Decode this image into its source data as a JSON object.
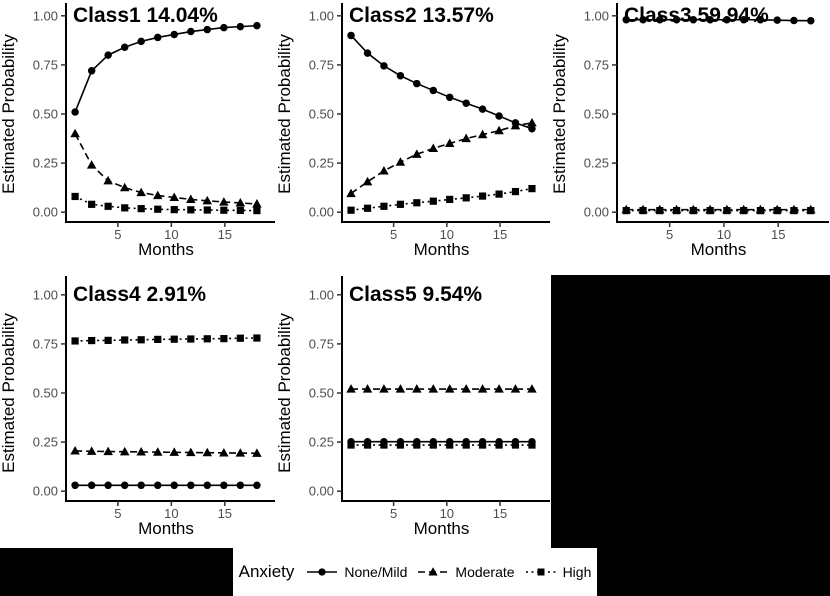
{
  "figure": {
    "background": "#ffffff",
    "filler_color": "#000000",
    "axis_line_color": "#000000",
    "tick_mark_color": "#333333",
    "tick_label_color": "#4d4d4d",
    "series_color": "#000000"
  },
  "legend": {
    "title": "Anxiety",
    "items": [
      {
        "label": "None/Mild",
        "marker": "circle",
        "linetype": "solid"
      },
      {
        "label": "Moderate",
        "marker": "triangle",
        "linetype": "dashed"
      },
      {
        "label": "High",
        "marker": "square",
        "linetype": "dotted"
      }
    ]
  },
  "chart_data": [
    {
      "type": "line",
      "title": "Class1 14.04%",
      "xlabel": "Months",
      "ylabel": "Estimated Probability",
      "xlim": [
        1,
        18
      ],
      "ylim": [
        0,
        1
      ],
      "x_ticks": [
        5,
        10,
        15
      ],
      "y_ticks": [
        0,
        0.25,
        0.5,
        0.75,
        1
      ],
      "y_tick_labels": [
        "0.00",
        "0.25",
        "0.50",
        "0.75",
        "1.00"
      ],
      "grid": false,
      "x": [
        1,
        2.55,
        4.09,
        5.64,
        7.18,
        8.73,
        10.27,
        11.82,
        13.36,
        14.91,
        16.45,
        18
      ],
      "series": [
        {
          "name": "None/Mild",
          "marker": "circle",
          "linetype": "solid",
          "values": [
            0.51,
            0.72,
            0.8,
            0.84,
            0.87,
            0.89,
            0.905,
            0.92,
            0.93,
            0.94,
            0.945,
            0.95
          ]
        },
        {
          "name": "Moderate",
          "marker": "triangle",
          "linetype": "dashed",
          "values": [
            0.4,
            0.24,
            0.16,
            0.125,
            0.1,
            0.085,
            0.075,
            0.065,
            0.058,
            0.052,
            0.047,
            0.042
          ]
        },
        {
          "name": "High",
          "marker": "square",
          "linetype": "dotted",
          "values": [
            0.08,
            0.04,
            0.03,
            0.022,
            0.018,
            0.015,
            0.013,
            0.012,
            0.011,
            0.01,
            0.009,
            0.008
          ]
        }
      ]
    },
    {
      "type": "line",
      "title": "Class2 13.57%",
      "xlabel": "Months",
      "ylabel": "Estimated Probability",
      "xlim": [
        1,
        18
      ],
      "ylim": [
        0,
        1
      ],
      "x_ticks": [
        5,
        10,
        15
      ],
      "y_ticks": [
        0,
        0.25,
        0.5,
        0.75,
        1
      ],
      "y_tick_labels": [
        "0.00",
        "0.25",
        "0.50",
        "0.75",
        "1.00"
      ],
      "grid": false,
      "x": [
        1,
        2.55,
        4.09,
        5.64,
        7.18,
        8.73,
        10.27,
        11.82,
        13.36,
        14.91,
        16.45,
        18
      ],
      "series": [
        {
          "name": "None/Mild",
          "marker": "circle",
          "linetype": "solid",
          "values": [
            0.9,
            0.81,
            0.745,
            0.695,
            0.655,
            0.62,
            0.585,
            0.555,
            0.525,
            0.49,
            0.455,
            0.425
          ]
        },
        {
          "name": "Moderate",
          "marker": "triangle",
          "linetype": "dashed",
          "values": [
            0.095,
            0.155,
            0.21,
            0.255,
            0.295,
            0.325,
            0.35,
            0.375,
            0.395,
            0.415,
            0.44,
            0.455
          ]
        },
        {
          "name": "High",
          "marker": "square",
          "linetype": "dotted",
          "values": [
            0.01,
            0.02,
            0.03,
            0.04,
            0.048,
            0.056,
            0.065,
            0.073,
            0.082,
            0.092,
            0.105,
            0.12
          ]
        }
      ]
    },
    {
      "type": "line",
      "title": "Class3 59.94%",
      "xlabel": "Months",
      "ylabel": "Estimated Probability",
      "xlim": [
        1,
        18
      ],
      "ylim": [
        0,
        1
      ],
      "x_ticks": [
        5,
        10,
        15
      ],
      "y_ticks": [
        0,
        0.25,
        0.5,
        0.75,
        1
      ],
      "y_tick_labels": [
        "0.00",
        "0.25",
        "0.50",
        "0.75",
        "1.00"
      ],
      "grid": false,
      "x": [
        1,
        2.55,
        4.09,
        5.64,
        7.18,
        8.73,
        10.27,
        11.82,
        13.36,
        14.91,
        16.45,
        18
      ],
      "series": [
        {
          "name": "None/Mild",
          "marker": "circle",
          "linetype": "solid",
          "values": [
            0.98,
            0.98,
            0.98,
            0.98,
            0.98,
            0.98,
            0.98,
            0.98,
            0.98,
            0.978,
            0.976,
            0.975
          ]
        },
        {
          "name": "Moderate",
          "marker": "triangle",
          "linetype": "dashed",
          "values": [
            0.013,
            0.013,
            0.013,
            0.013,
            0.013,
            0.013,
            0.013,
            0.013,
            0.013,
            0.013,
            0.013,
            0.013
          ]
        },
        {
          "name": "High",
          "marker": "square",
          "linetype": "dotted",
          "values": [
            0.008,
            0.008,
            0.008,
            0.008,
            0.008,
            0.008,
            0.008,
            0.008,
            0.008,
            0.008,
            0.008,
            0.008
          ]
        }
      ]
    },
    {
      "type": "line",
      "title": "Class4 2.91%",
      "xlabel": "Months",
      "ylabel": "Estimated Probability",
      "xlim": [
        1,
        18
      ],
      "ylim": [
        0,
        1
      ],
      "x_ticks": [
        5,
        10,
        15
      ],
      "y_ticks": [
        0,
        0.25,
        0.5,
        0.75,
        1
      ],
      "y_tick_labels": [
        "0.00",
        "0.25",
        "0.50",
        "0.75",
        "1.00"
      ],
      "grid": false,
      "x": [
        1,
        2.55,
        4.09,
        5.64,
        7.18,
        8.73,
        10.27,
        11.82,
        13.36,
        14.91,
        16.45,
        18
      ],
      "series": [
        {
          "name": "None/Mild",
          "marker": "circle",
          "linetype": "solid",
          "values": [
            0.03,
            0.03,
            0.03,
            0.03,
            0.03,
            0.03,
            0.03,
            0.03,
            0.03,
            0.03,
            0.03,
            0.03
          ]
        },
        {
          "name": "Moderate",
          "marker": "triangle",
          "linetype": "dashed",
          "values": [
            0.205,
            0.203,
            0.202,
            0.201,
            0.2,
            0.199,
            0.198,
            0.197,
            0.196,
            0.195,
            0.194,
            0.193
          ]
        },
        {
          "name": "High",
          "marker": "square",
          "linetype": "dotted",
          "values": [
            0.765,
            0.767,
            0.768,
            0.77,
            0.771,
            0.773,
            0.774,
            0.775,
            0.776,
            0.777,
            0.779,
            0.78
          ]
        }
      ]
    },
    {
      "type": "line",
      "title": "Class5 9.54%",
      "xlabel": "Months",
      "ylabel": "Estimated Probability",
      "xlim": [
        1,
        18
      ],
      "ylim": [
        0,
        1
      ],
      "x_ticks": [
        5,
        10,
        15
      ],
      "y_ticks": [
        0,
        0.25,
        0.5,
        0.75,
        1
      ],
      "y_tick_labels": [
        "0.00",
        "0.25",
        "0.50",
        "0.75",
        "1.00"
      ],
      "grid": false,
      "x": [
        1,
        2.55,
        4.09,
        5.64,
        7.18,
        8.73,
        10.27,
        11.82,
        13.36,
        14.91,
        16.45,
        18
      ],
      "series": [
        {
          "name": "None/Mild",
          "marker": "circle",
          "linetype": "solid",
          "values": [
            0.252,
            0.252,
            0.252,
            0.252,
            0.252,
            0.252,
            0.252,
            0.252,
            0.252,
            0.252,
            0.252,
            0.252
          ]
        },
        {
          "name": "Moderate",
          "marker": "triangle",
          "linetype": "dashed",
          "values": [
            0.52,
            0.52,
            0.52,
            0.52,
            0.52,
            0.52,
            0.52,
            0.52,
            0.52,
            0.52,
            0.52,
            0.52
          ]
        },
        {
          "name": "High",
          "marker": "square",
          "linetype": "dotted",
          "values": [
            0.235,
            0.235,
            0.235,
            0.235,
            0.235,
            0.235,
            0.235,
            0.235,
            0.235,
            0.235,
            0.235,
            0.235
          ]
        }
      ]
    }
  ]
}
